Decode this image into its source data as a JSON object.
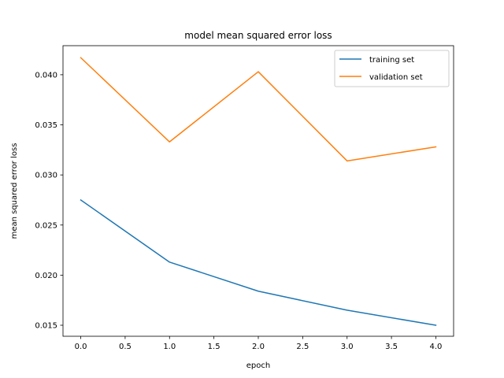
{
  "chart_data": {
    "type": "line",
    "title": "model mean squared error loss",
    "xlabel": "epoch",
    "ylabel": "mean squared error loss",
    "xlim": [
      -0.2,
      4.2
    ],
    "ylim": [
      0.0139,
      0.0429
    ],
    "xticks": [
      0.0,
      0.5,
      1.0,
      1.5,
      2.0,
      2.5,
      3.0,
      3.5,
      4.0
    ],
    "xtick_labels": [
      "0.0",
      "0.5",
      "1.0",
      "1.5",
      "2.0",
      "2.5",
      "3.0",
      "3.5",
      "4.0"
    ],
    "yticks": [
      0.015,
      0.02,
      0.025,
      0.03,
      0.035,
      0.04
    ],
    "ytick_labels": [
      "0.015",
      "0.020",
      "0.025",
      "0.030",
      "0.035",
      "0.040"
    ],
    "grid": false,
    "legend_position": "top-right",
    "x": [
      0,
      1,
      2,
      3,
      4
    ],
    "series": [
      {
        "name": "training set",
        "color": "#1f77b4",
        "values": [
          0.0275,
          0.0213,
          0.0184,
          0.0165,
          0.015
        ]
      },
      {
        "name": "validation set",
        "color": "#ff7f0e",
        "values": [
          0.0417,
          0.0333,
          0.0403,
          0.0314,
          0.0328
        ]
      }
    ]
  }
}
